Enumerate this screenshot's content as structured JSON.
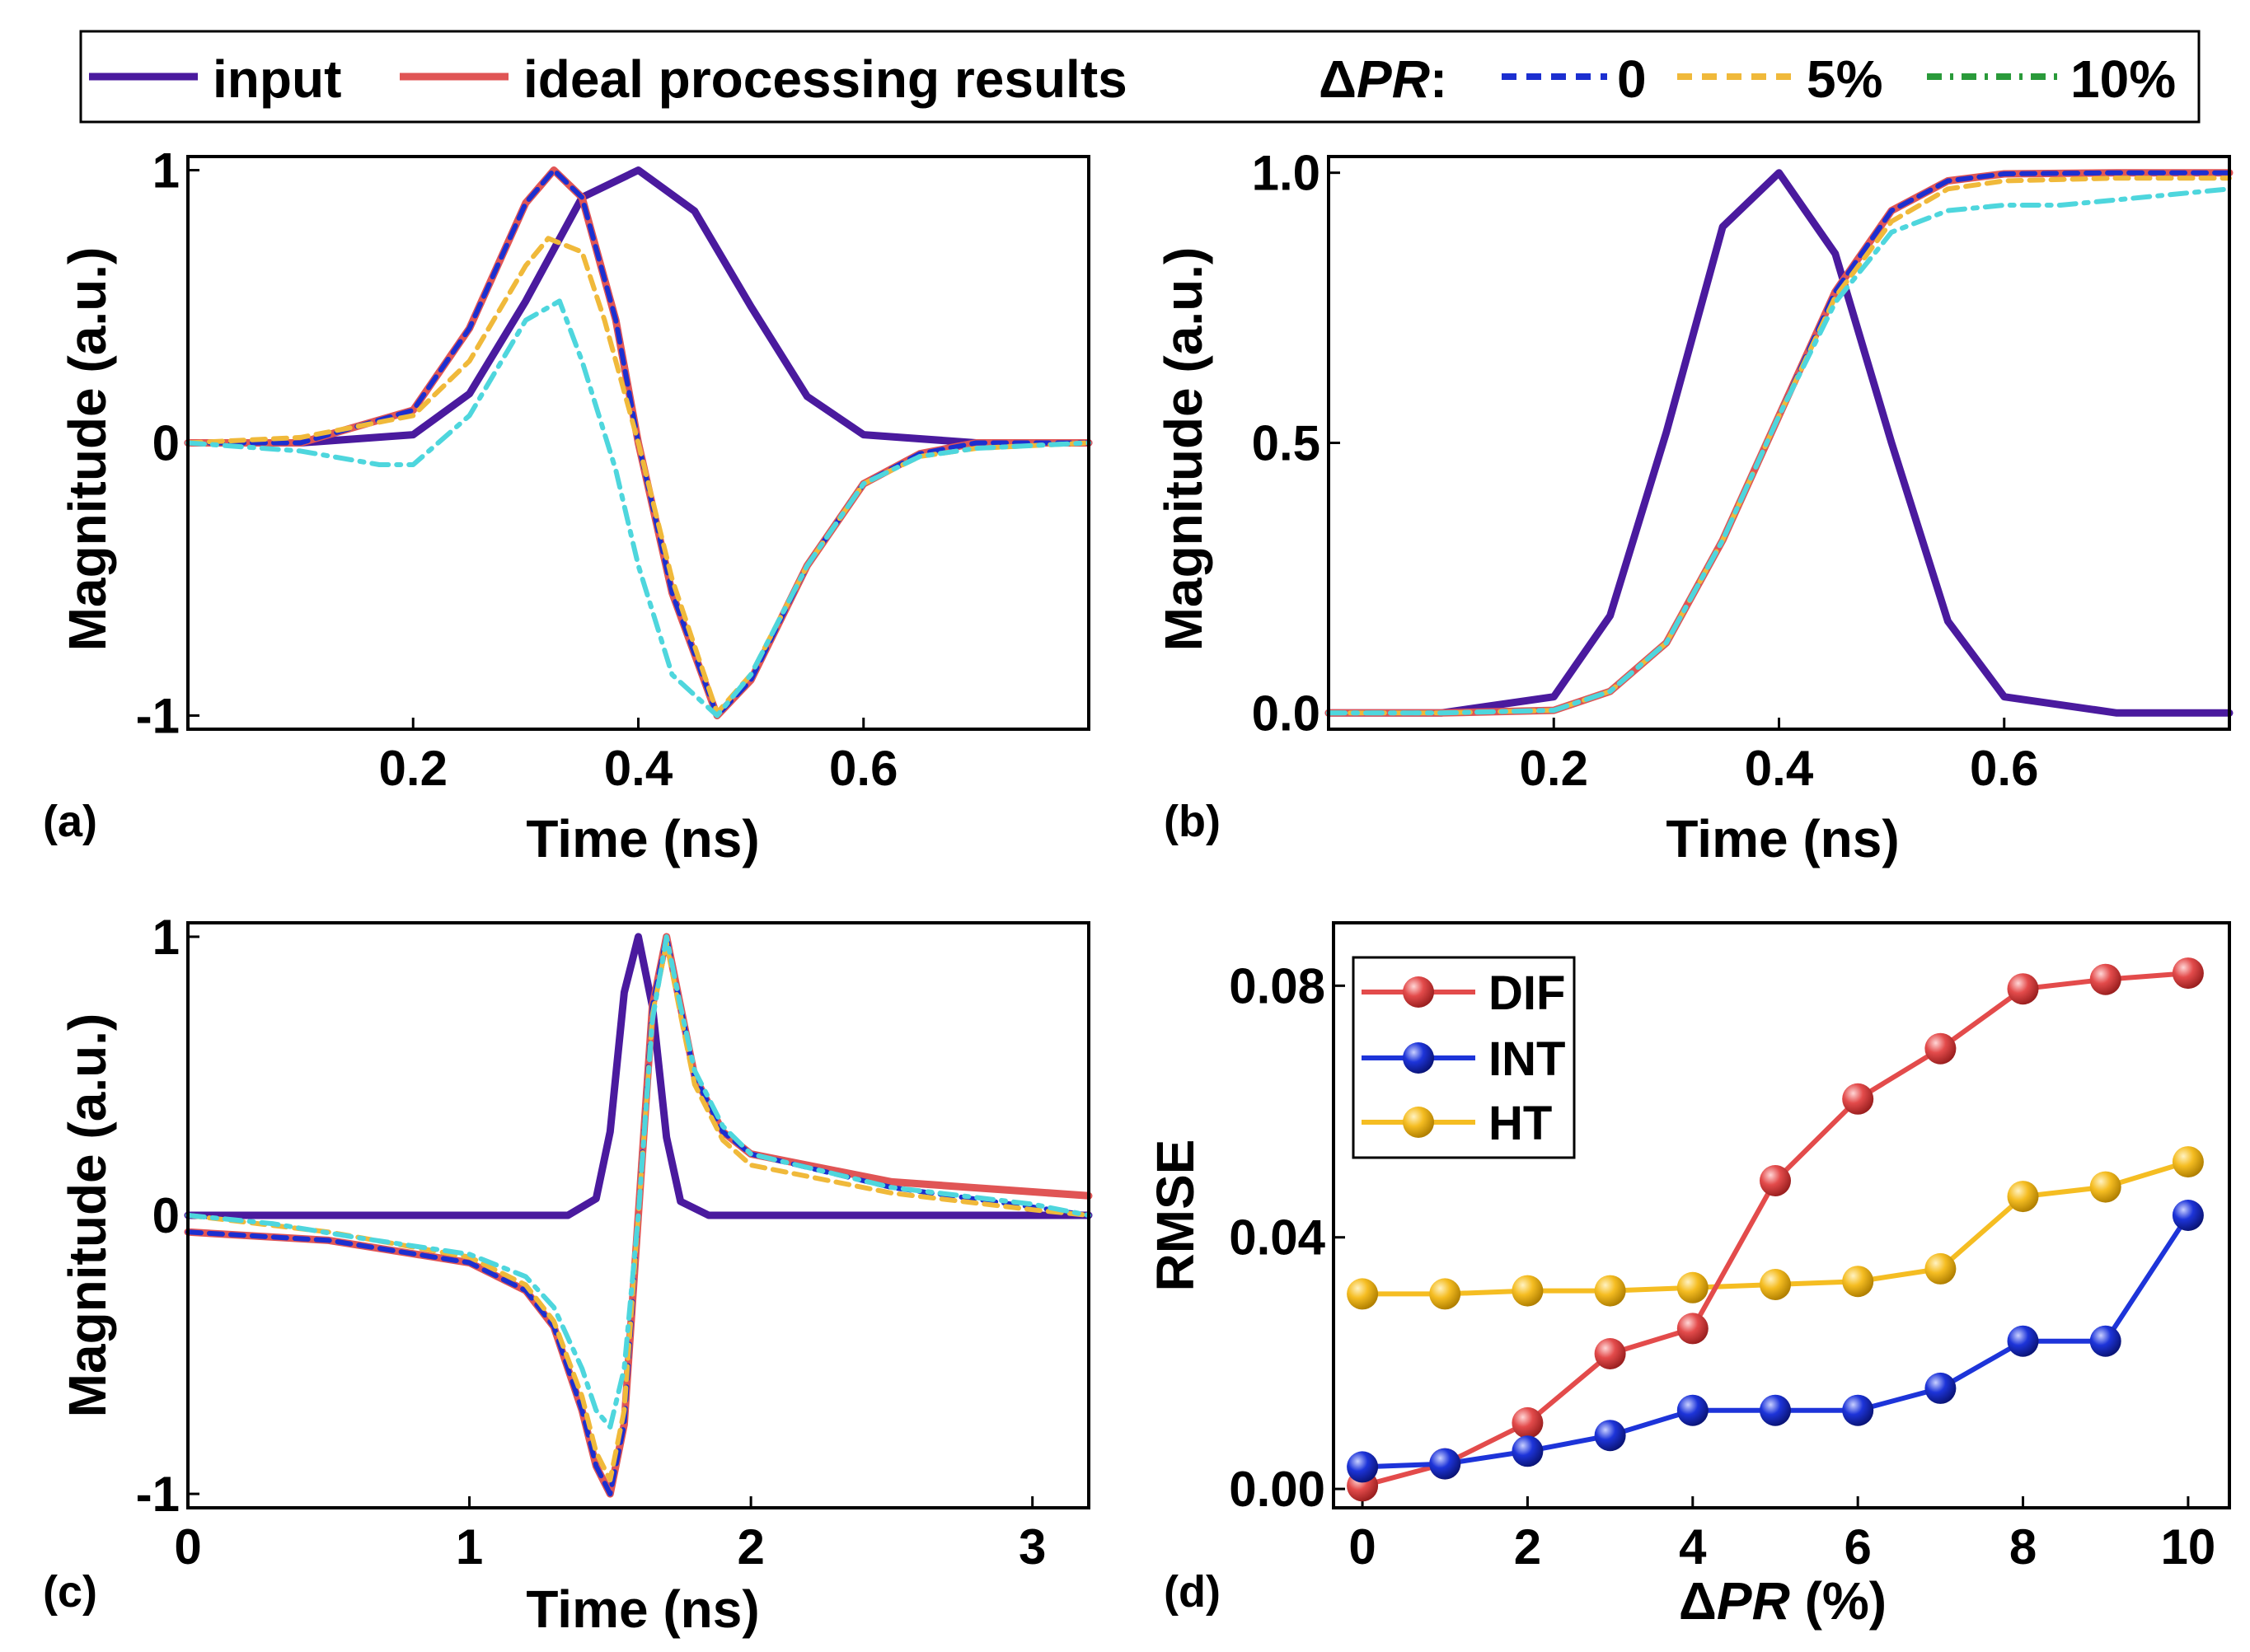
{
  "legend": {
    "input": "input",
    "ideal": "ideal processing results",
    "dpr_prefix": "Δ",
    "dpr_var": "PR",
    "dpr_colon": ":",
    "levels": [
      "0",
      "5%",
      "10%"
    ]
  },
  "colors": {
    "input": "#4a1a9e",
    "ideal": "#e05555",
    "dpr0": "#1c2fd0",
    "dpr5": "#f0b93a",
    "dpr10": "#2a9a3a",
    "dpr10_visible": "#4ed6dd",
    "DIF": "#e34b4b",
    "INT": "#1d34d9",
    "HT": "#f5bd22"
  },
  "chart_data": [
    {
      "panel": "(a)",
      "type": "line",
      "xlabel": "Time (ns)",
      "ylabel": "Magnitude (a.u.)",
      "xlim": [
        0.0,
        0.8
      ],
      "ylim": [
        -1.05,
        1.05
      ],
      "xticks": [
        "0.2",
        "0.4",
        "0.6"
      ],
      "yticks": [
        "-1",
        "0",
        "1"
      ],
      "series": [
        {
          "name": "input",
          "x": [
            0.0,
            0.1,
            0.2,
            0.25,
            0.3,
            0.35,
            0.4,
            0.45,
            0.5,
            0.55,
            0.6,
            0.7,
            0.8
          ],
          "y": [
            0,
            0,
            0.03,
            0.18,
            0.52,
            0.9,
            1.0,
            0.85,
            0.5,
            0.17,
            0.03,
            0,
            0
          ]
        },
        {
          "name": "ideal processing results",
          "x": [
            0.0,
            0.1,
            0.2,
            0.25,
            0.3,
            0.325,
            0.35,
            0.38,
            0.4,
            0.43,
            0.47,
            0.5,
            0.55,
            0.6,
            0.65,
            0.7,
            0.8
          ],
          "y": [
            0,
            0,
            0.12,
            0.42,
            0.88,
            1.0,
            0.9,
            0.45,
            0.0,
            -0.55,
            -1.0,
            -0.87,
            -0.45,
            -0.15,
            -0.04,
            0,
            0
          ]
        },
        {
          "name": "ΔPR 0",
          "x": [
            0.0,
            0.1,
            0.2,
            0.25,
            0.3,
            0.325,
            0.35,
            0.38,
            0.4,
            0.43,
            0.47,
            0.5,
            0.55,
            0.6,
            0.65,
            0.7,
            0.8
          ],
          "y": [
            0,
            0,
            0.12,
            0.42,
            0.88,
            1.0,
            0.9,
            0.45,
            0.0,
            -0.55,
            -1.0,
            -0.87,
            -0.45,
            -0.15,
            -0.04,
            0,
            0
          ]
        },
        {
          "name": "ΔPR 5%",
          "x": [
            0.0,
            0.1,
            0.2,
            0.25,
            0.3,
            0.32,
            0.35,
            0.37,
            0.4,
            0.43,
            0.47,
            0.5,
            0.55,
            0.6,
            0.65,
            0.7,
            0.8
          ],
          "y": [
            0,
            0.02,
            0.1,
            0.3,
            0.65,
            0.75,
            0.7,
            0.45,
            0.0,
            -0.5,
            -0.99,
            -0.85,
            -0.45,
            -0.15,
            -0.05,
            -0.02,
            0
          ]
        },
        {
          "name": "ΔPR 10%",
          "x": [
            0.0,
            0.1,
            0.17,
            0.2,
            0.25,
            0.3,
            0.33,
            0.35,
            0.38,
            0.4,
            0.43,
            0.47,
            0.5,
            0.55,
            0.6,
            0.65,
            0.7,
            0.8
          ],
          "y": [
            0,
            -0.03,
            -0.08,
            -0.08,
            0.1,
            0.45,
            0.52,
            0.3,
            -0.1,
            -0.45,
            -0.85,
            -1.0,
            -0.85,
            -0.45,
            -0.15,
            -0.05,
            -0.02,
            0
          ]
        }
      ]
    },
    {
      "panel": "(b)",
      "type": "line",
      "xlabel": "Time (ns)",
      "ylabel": "Magnitude (a.u.)",
      "xlim": [
        0.0,
        0.8
      ],
      "ylim": [
        -0.03,
        1.03
      ],
      "xticks": [
        "0.2",
        "0.4",
        "0.6"
      ],
      "yticks": [
        "0.0",
        "0.5",
        "1.0"
      ],
      "series": [
        {
          "name": "input",
          "x": [
            0.0,
            0.1,
            0.2,
            0.25,
            0.3,
            0.35,
            0.4,
            0.45,
            0.5,
            0.55,
            0.6,
            0.7,
            0.8
          ],
          "y": [
            0,
            0,
            0.03,
            0.18,
            0.52,
            0.9,
            1.0,
            0.85,
            0.5,
            0.17,
            0.03,
            0,
            0
          ]
        },
        {
          "name": "ideal processing results",
          "x": [
            0.0,
            0.1,
            0.2,
            0.25,
            0.3,
            0.35,
            0.4,
            0.45,
            0.5,
            0.55,
            0.6,
            0.7,
            0.8
          ],
          "y": [
            0,
            0,
            0.005,
            0.04,
            0.13,
            0.32,
            0.55,
            0.78,
            0.93,
            0.985,
            0.998,
            1.0,
            1.0
          ]
        },
        {
          "name": "ΔPR 0",
          "x": [
            0.0,
            0.1,
            0.2,
            0.25,
            0.3,
            0.35,
            0.4,
            0.45,
            0.5,
            0.55,
            0.6,
            0.7,
            0.8
          ],
          "y": [
            0,
            0,
            0.005,
            0.04,
            0.13,
            0.32,
            0.55,
            0.78,
            0.93,
            0.985,
            0.998,
            1.0,
            1.0
          ]
        },
        {
          "name": "ΔPR 5%",
          "x": [
            0.0,
            0.1,
            0.2,
            0.25,
            0.3,
            0.35,
            0.4,
            0.45,
            0.5,
            0.55,
            0.6,
            0.7,
            0.8
          ],
          "y": [
            0,
            0,
            0.005,
            0.04,
            0.13,
            0.32,
            0.55,
            0.77,
            0.91,
            0.97,
            0.985,
            0.99,
            0.99
          ]
        },
        {
          "name": "ΔPR 10%",
          "x": [
            0.0,
            0.1,
            0.2,
            0.25,
            0.3,
            0.35,
            0.4,
            0.45,
            0.5,
            0.55,
            0.6,
            0.65,
            0.7,
            0.75,
            0.8
          ],
          "y": [
            0,
            0,
            0.005,
            0.04,
            0.13,
            0.32,
            0.55,
            0.76,
            0.89,
            0.93,
            0.94,
            0.94,
            0.95,
            0.96,
            0.97
          ]
        }
      ]
    },
    {
      "panel": "(c)",
      "type": "line",
      "xlabel": "Time (ns)",
      "ylabel": "Magnitude (a.u.)",
      "xlim": [
        0.0,
        3.2
      ],
      "ylim": [
        -1.05,
        1.05
      ],
      "xticks": [
        "0",
        "1",
        "2",
        "3"
      ],
      "yticks": [
        "-1",
        "0",
        "1"
      ],
      "series": [
        {
          "name": "input",
          "x": [
            0.0,
            1.0,
            1.35,
            1.45,
            1.5,
            1.55,
            1.6,
            1.65,
            1.7,
            1.75,
            1.85,
            2.2,
            3.2
          ],
          "y": [
            0,
            0,
            0.0,
            0.06,
            0.3,
            0.8,
            1.0,
            0.75,
            0.28,
            0.05,
            0,
            0,
            0
          ]
        },
        {
          "name": "ideal processing results",
          "x": [
            0.0,
            0.5,
            1.0,
            1.2,
            1.3,
            1.4,
            1.45,
            1.5,
            1.55,
            1.6,
            1.65,
            1.7,
            1.75,
            1.8,
            1.9,
            2.0,
            2.5,
            3.2
          ],
          "y": [
            -0.06,
            -0.09,
            -0.17,
            -0.27,
            -0.4,
            -0.7,
            -0.9,
            -1.0,
            -0.75,
            0.0,
            0.75,
            1.0,
            0.75,
            0.5,
            0.3,
            0.22,
            0.12,
            0.07
          ]
        },
        {
          "name": "ΔPR 0",
          "x": [
            0.0,
            0.5,
            1.0,
            1.2,
            1.3,
            1.4,
            1.45,
            1.5,
            1.55,
            1.6,
            1.65,
            1.7,
            1.75,
            1.8,
            1.9,
            2.0,
            2.5,
            3.0,
            3.2
          ],
          "y": [
            -0.06,
            -0.09,
            -0.17,
            -0.27,
            -0.4,
            -0.7,
            -0.9,
            -1.0,
            -0.75,
            0.0,
            0.75,
            1.0,
            0.75,
            0.5,
            0.3,
            0.22,
            0.1,
            0.03,
            0.0
          ]
        },
        {
          "name": "ΔPR 5%",
          "x": [
            0.0,
            0.5,
            1.0,
            1.2,
            1.3,
            1.4,
            1.45,
            1.5,
            1.55,
            1.6,
            1.65,
            1.7,
            1.75,
            1.8,
            1.9,
            2.0,
            2.5,
            3.0,
            3.2
          ],
          "y": [
            0,
            -0.06,
            -0.15,
            -0.25,
            -0.38,
            -0.65,
            -0.85,
            -0.95,
            -0.7,
            0.0,
            0.72,
            0.98,
            0.72,
            0.47,
            0.27,
            0.18,
            0.08,
            0.02,
            0.0
          ]
        },
        {
          "name": "ΔPR 10%",
          "x": [
            0.0,
            0.3,
            0.6,
            1.0,
            1.2,
            1.3,
            1.4,
            1.45,
            1.5,
            1.55,
            1.6,
            1.65,
            1.7,
            1.75,
            1.8,
            1.9,
            2.0,
            2.5,
            3.0,
            3.2
          ],
          "y": [
            0.0,
            -0.03,
            -0.08,
            -0.14,
            -0.22,
            -0.33,
            -0.55,
            -0.7,
            -0.76,
            -0.55,
            0.0,
            0.7,
            1.0,
            0.75,
            0.52,
            0.32,
            0.22,
            0.1,
            0.04,
            0.0
          ]
        }
      ]
    },
    {
      "panel": "(d)",
      "type": "line",
      "xlabel_prefix": "Δ",
      "xlabel_var": "PR",
      "xlabel_suffix": " (%)",
      "ylabel": "RMSE",
      "xlim": [
        -0.35,
        10.5
      ],
      "ylim": [
        -0.003,
        0.09
      ],
      "xticks": [
        "0",
        "2",
        "4",
        "6",
        "8",
        "10"
      ],
      "yticks": [
        "0.00",
        "0.04",
        "0.08"
      ],
      "x": [
        0,
        1,
        2,
        3,
        4,
        5,
        6,
        7,
        8,
        9,
        10
      ],
      "series": [
        {
          "name": "DIF",
          "values": [
            0.0005,
            0.004,
            0.0105,
            0.0215,
            0.0255,
            0.049,
            0.062,
            0.07,
            0.0795,
            0.081,
            0.082
          ]
        },
        {
          "name": "INT",
          "values": [
            0.0035,
            0.004,
            0.006,
            0.0085,
            0.0125,
            0.0125,
            0.0125,
            0.016,
            0.0235,
            0.0235,
            0.0435
          ]
        },
        {
          "name": "HT",
          "values": [
            0.031,
            0.031,
            0.0315,
            0.0315,
            0.032,
            0.0325,
            0.033,
            0.035,
            0.0465,
            0.048,
            0.052
          ]
        }
      ]
    }
  ]
}
